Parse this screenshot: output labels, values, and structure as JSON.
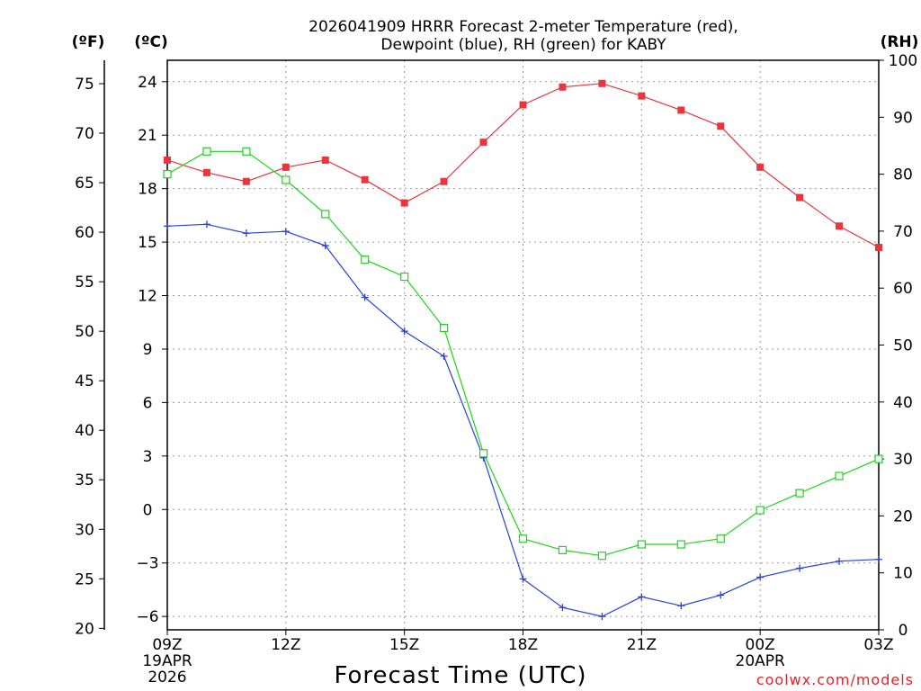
{
  "chart_data": {
    "type": "line",
    "title_line1": "2026041909 HRRR Forecast 2-meter Temperature (red),",
    "title_line2": "Dewpoint (blue), RH (green) for KABY",
    "xlabel": "Forecast Time (UTC)",
    "credit": "coolwx.com/models",
    "units": {
      "left_outer": "(ºF)",
      "left_inner": "(ºC)",
      "right": "(RH)"
    },
    "x_hours": [
      0,
      1,
      2,
      3,
      4,
      5,
      6,
      7,
      8,
      9,
      10,
      11,
      12,
      13,
      14,
      15,
      16,
      17,
      18
    ],
    "x_ticks": [
      {
        "hour": 0,
        "lines": [
          "09Z",
          "19APR",
          "2026"
        ]
      },
      {
        "hour": 3,
        "lines": [
          "12Z"
        ]
      },
      {
        "hour": 6,
        "lines": [
          "15Z"
        ]
      },
      {
        "hour": 9,
        "lines": [
          "18Z"
        ]
      },
      {
        "hour": 12,
        "lines": [
          "21Z"
        ]
      },
      {
        "hour": 15,
        "lines": [
          "00Z",
          "20APR"
        ]
      },
      {
        "hour": 18,
        "lines": [
          "03Z"
        ]
      }
    ],
    "celsius_axis": {
      "min": -6.75,
      "max": 25.2,
      "ticks": [
        "24",
        "21",
        "18",
        "15",
        "12",
        "9",
        "6",
        "3",
        "0",
        "−3",
        "−6"
      ],
      "tick_values": [
        24,
        21,
        18,
        15,
        12,
        9,
        6,
        3,
        0,
        -3,
        -6
      ]
    },
    "fahrenheit_axis": {
      "ticks": [
        "75",
        "70",
        "65",
        "60",
        "55",
        "50",
        "45",
        "40",
        "35",
        "30",
        "25",
        "20"
      ],
      "tick_values": [
        75,
        70,
        65,
        60,
        55,
        50,
        45,
        40,
        35,
        30,
        25,
        20
      ]
    },
    "rh_axis": {
      "min": 0,
      "max": 100,
      "ticks": [
        "100",
        "90",
        "80",
        "70",
        "60",
        "50",
        "40",
        "30",
        "20",
        "10",
        "0"
      ],
      "tick_values": [
        100,
        90,
        80,
        70,
        60,
        50,
        40,
        30,
        20,
        10,
        0
      ]
    },
    "series": [
      {
        "name": "Temperature",
        "unit": "C",
        "color": "#e8363c",
        "marker": "filled-square",
        "values": [
          19.6,
          18.9,
          18.4,
          19.2,
          19.6,
          18.5,
          17.2,
          18.4,
          20.6,
          22.7,
          23.7,
          23.9,
          23.2,
          22.4,
          21.5,
          19.2,
          17.5,
          15.9,
          14.7
        ]
      },
      {
        "name": "Dewpoint",
        "unit": "C",
        "color": "#2441e0",
        "marker": "plus",
        "values": [
          15.9,
          16.0,
          15.5,
          15.6,
          14.8,
          11.9,
          10.0,
          8.6,
          2.9,
          -3.9,
          -5.5,
          -6.0,
          -4.9,
          -5.4,
          -4.8,
          -3.8,
          -3.3,
          -2.9,
          -2.8
        ]
      },
      {
        "name": "RH",
        "unit": "%",
        "color": "#18d818",
        "marker": "open-square",
        "values": [
          80,
          84,
          84,
          79,
          73,
          65,
          62,
          53,
          31,
          16,
          14,
          13,
          15,
          15,
          16,
          21,
          24,
          27,
          30
        ]
      }
    ]
  }
}
